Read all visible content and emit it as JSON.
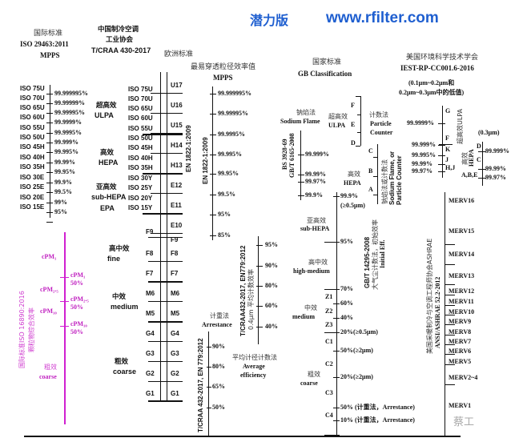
{
  "header": {
    "title_cn": "潜力版",
    "url": "www.rfilter.com"
  },
  "iso29463": {
    "title_cn": "国际标准",
    "title": "ISO 29463:2011",
    "subtitle": "MPPS",
    "classes": [
      "ISO 75U",
      "ISO 70U",
      "ISO 65U",
      "ISO 60U",
      "ISO 55U",
      "ISO 50U",
      "ISO 45H",
      "ISO 40H",
      "ISO 35H",
      "ISO 30E",
      "ISO 25E",
      "ISO 20E",
      "ISO 15E"
    ],
    "values": [
      "99.999995%",
      "99.99999%",
      "99.99995%",
      "99.9999%",
      "99.9995%",
      "99.999%",
      "99.995%",
      "99.99%",
      "99.95%",
      "99.9%",
      "99.5%",
      "99%",
      "95%"
    ]
  },
  "tcraa430": {
    "title_1": "中国制冷空调",
    "title_2": "工业协会",
    "title_3": "T/CRAA 430-2017",
    "groups": [
      {
        "cn": "超高效",
        "en": "ULPA"
      },
      {
        "cn": "高效",
        "en": "HEPA"
      },
      {
        "cn": "亚高效",
        "en": "sub-HEPA",
        "en2": "EPA"
      },
      {
        "cn": "高中效",
        "en": "fine"
      },
      {
        "cn": "中效",
        "en": "medium"
      },
      {
        "cn": "粗效",
        "en": "coarse"
      }
    ],
    "classes": [
      "ISO 75U",
      "ISO 70U",
      "ISO 65U",
      "ISO 60U",
      "ISO 55U",
      "ISO 50U",
      "ISO 45H",
      "ISO 40H",
      "ISO 35H",
      "ISO 30Y",
      "ISO 25Y",
      "ISO 20Y",
      "ISO 15Y"
    ],
    "fine_classes": [
      "F9",
      "F8",
      "F7",
      "M6",
      "M5",
      "G4",
      "G3",
      "G2",
      "G1"
    ]
  },
  "en1822": {
    "title_cn": "欧洲标准",
    "classes": [
      "U17",
      "U16",
      "U15",
      "H14",
      "H13",
      "E12",
      "E11",
      "E10"
    ],
    "rot_label": "EN 1822-1:2009"
  },
  "en779": {
    "classes": [
      "F9",
      "F8",
      "F7",
      "M6",
      "M5",
      "G4",
      "G3",
      "G2",
      "G1"
    ]
  },
  "mpps": {
    "title_cn": "最易穿透粒径效率值",
    "title": "MPPS",
    "rot_label": "EN 1822-1:2009",
    "values": [
      "99.999995%",
      "99.99995%",
      "99.9995%",
      "99.995%",
      "99.95%",
      "99.5%",
      "95%",
      "85%"
    ]
  },
  "average": {
    "rot_label_1": "T/CRAA432-2017, EN779:2012",
    "rot_label_2": "0.4μm 平均计数效率",
    "values": [
      "95%",
      "90%",
      "80%",
      "60%",
      "40%"
    ],
    "method_cn": "平均计径计数法",
    "method_en_1": "Average",
    "method_en_2": "efficiency"
  },
  "arrestance": {
    "method_cn": "计重法",
    "method_en": "Arrestance",
    "rot_label": "T/CRAA 432-2017, EN 779:2012",
    "values": [
      "90%",
      "80%",
      "65%",
      "50%"
    ]
  },
  "gb": {
    "title_cn": "国家标准",
    "title": "GB Classification",
    "sodium_cn": "钠焰法",
    "sodium_en": "Sodium Flame",
    "sodium_rot_1": "BS 3928-69",
    "sodium_rot_2": "GB/T 6165-2008",
    "sodium_values": [
      "99.999%",
      "99.99%",
      "99.97%",
      "99.9%"
    ],
    "ulpa_cn": "超高效",
    "ulpa_en": "ULPA",
    "ulpa_classes": [
      "F",
      "E",
      "D"
    ],
    "counter_cn": "计数法",
    "counter_en_1": "Particle",
    "counter_en_2": "Counter",
    "hepa_classes": [
      "C",
      "B",
      "A"
    ],
    "hepa_cn": "高效",
    "hepa_en": "HEPA",
    "hepa_rot_1": "钠焰法或计数法",
    "hepa_rot_2": "Sodium Flame, or",
    "hepa_rot_3": "Particle Counter",
    "subhepa_cn": "亚高效",
    "subhepa_en": "sub-HEPA",
    "highmed_cn": "高中效",
    "highmed_en": "high-medium",
    "medium_cn": "中效",
    "medium_en": "medium",
    "coarse_cn": "粗效",
    "coarse_en": "coarse",
    "z_classes": [
      "Z1",
      "Z2",
      "Z3"
    ],
    "c_classes": [
      "C1",
      "C2",
      "C3",
      "C4"
    ],
    "values": [
      "99.9%",
      "(≥0.5μm)",
      "95%",
      "70%",
      "60%",
      "40%",
      "20%(≥0.5μm)",
      "50%(≥2μm)",
      "20%(≥2μm)",
      "50% (计重法，Arrestance)",
      "10% (计重法，Arrestance)"
    ],
    "rot_1": "GB/T 14295-2008",
    "rot_2": "大气尘计数法，初始效率",
    "rot_3": "Initial Eff."
  },
  "iest": {
    "title_cn": "美国环境科学技术学会",
    "title": "IEST-RP-CC001.6-2016",
    "note_1": "(0.1μm~0.2μm和",
    "note_2": "0.2μm~0.3μm中的低值)",
    "ulpa_classes": [
      "G",
      "F",
      "K",
      "J",
      "H,J"
    ],
    "ulpa_values": [
      "99.9999%",
      "99.999%",
      "99.995%",
      "99.99%",
      "99.97%"
    ],
    "ulpa_rot": "超高效ULPA",
    "hepa_note": "(0.3μm)",
    "hepa_classes": [
      "D",
      "C",
      "A,B,E"
    ],
    "hepa_values": [
      "99.999%",
      "99.99%",
      "99.97%"
    ],
    "hepa_rot_cn": "高效",
    "hepa_rot_en": "HEPA"
  },
  "ashrae": {
    "classes": [
      "MERV16",
      "MERV15",
      "MERV14",
      "MERV13",
      "MERV12",
      "MERV11",
      "MERV10",
      "MERV9",
      "MERV8",
      "MERV7",
      "MERV6",
      "MERV5",
      "MERV2~4",
      "MERV1"
    ],
    "rot_1": "美国采暖制冷与空调工程师协会ASHRAE",
    "rot_2": "ANSI/ASHRAE 52.2-2012"
  },
  "iso16890": {
    "rot_1": "国际标准ISO 16890:2016",
    "rot_2": "颗粒物综合效率",
    "groups": [
      "cPM₁",
      "cPM₂.₅",
      "cPM₁₀"
    ],
    "marks": [
      "cPM₁",
      "50%",
      "cPM₂.₅",
      "50%",
      "cPM₁₀",
      "50%"
    ],
    "coarse_cn": "粗效",
    "coarse_en": "coarse",
    "color": "#c020c0"
  },
  "watermark": "蔡工"
}
